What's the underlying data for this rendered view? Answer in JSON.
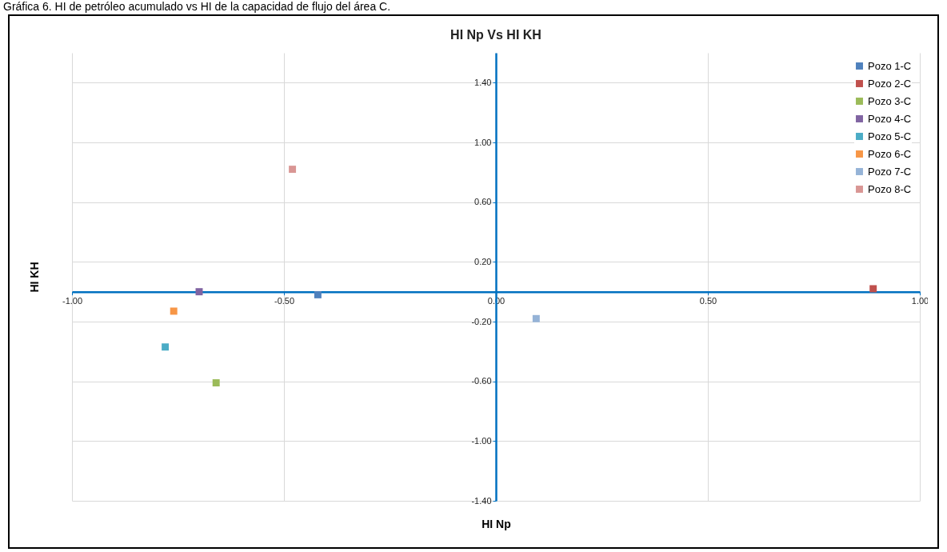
{
  "chart_data": {
    "type": "scatter",
    "title": "HI Np Vs HI KH",
    "xlabel": "HI Np",
    "ylabel": "HI KH",
    "annotations": [
      "Gráfica 6. HI de petróleo acumulado vs HI de la capacidad de flujo del área C."
    ],
    "series": [
      {
        "name": "Pozo 1-C",
        "color": "#4f81bd",
        "x": [
          -0.42
        ],
        "values": [
          -0.02
        ]
      },
      {
        "name": "Pozo 2-C",
        "color": "#c0504d",
        "x": [
          0.89
        ],
        "values": [
          0.02
        ]
      },
      {
        "name": "Pozo 3-C",
        "color": "#9bbb59",
        "x": [
          -0.66
        ],
        "values": [
          -0.61
        ]
      },
      {
        "name": "Pozo 4-C",
        "color": "#8064a2",
        "x": [
          -0.7
        ],
        "values": [
          0.0
        ]
      },
      {
        "name": "Pozo 5-C",
        "color": "#4bacc6",
        "x": [
          -0.78
        ],
        "values": [
          -0.37
        ]
      },
      {
        "name": "Pozo 6-C",
        "color": "#f79646",
        "x": [
          -0.76
        ],
        "values": [
          -0.13
        ]
      },
      {
        "name": "Pozo 7-C",
        "color": "#95b3d7",
        "x": [
          0.095
        ],
        "values": [
          -0.18
        ]
      },
      {
        "name": "Pozo 8-C",
        "color": "#d99694",
        "x": [
          -0.48
        ],
        "values": [
          0.82
        ]
      }
    ],
    "xlim": [
      -1.0,
      1.0
    ],
    "xticks": [
      {
        "value": -1,
        "label": "-1.00"
      },
      {
        "value": -0.5,
        "label": "-0.50"
      },
      {
        "value": 0,
        "label": "0.00"
      },
      {
        "value": 0.5,
        "label": "0.50"
      },
      {
        "value": 1,
        "label": "1.00"
      }
    ],
    "ylim": [
      -1.4,
      1.6
    ],
    "yticks": [
      {
        "value": -1.4,
        "label": "-1.40"
      },
      {
        "value": -1.0,
        "label": "-1.00"
      },
      {
        "value": -0.6,
        "label": "-0.60"
      },
      {
        "value": -0.2,
        "label": "-0.20"
      },
      {
        "value": 0.2,
        "label": "0.20"
      },
      {
        "value": 0.6,
        "label": "0.60"
      },
      {
        "value": 1.0,
        "label": "1.00"
      },
      {
        "value": 1.4,
        "label": "1.40"
      }
    ],
    "grid": true,
    "legend": "top right",
    "marker": "square"
  }
}
